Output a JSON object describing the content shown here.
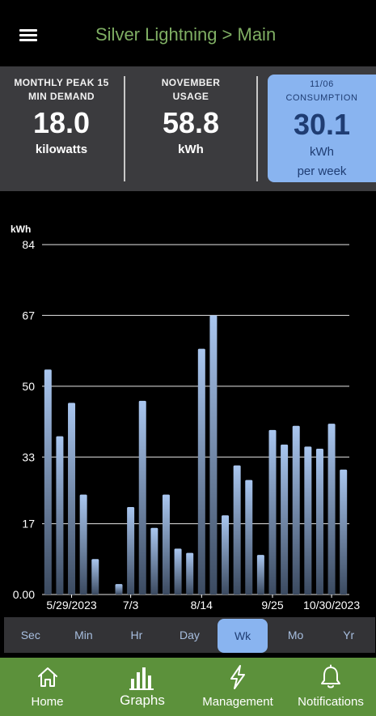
{
  "header": {
    "title": "Silver Lightning > Main",
    "menu_icon": "hamburger-menu-icon"
  },
  "summary": {
    "peak": {
      "label_line1": "MONTHLY PEAK 15",
      "label_line2": "MIN DEMAND",
      "value": "18.0",
      "unit": "kilowatts"
    },
    "usage": {
      "label_line1": "NOVEMBER",
      "label_line2": "USAGE",
      "value": "58.8",
      "unit": "kWh"
    },
    "consumption": {
      "label_line1": "11/06",
      "label_line2": "CONSUMPTION",
      "value": "30.1",
      "unit_line1": "kWh",
      "unit_line2": "per week"
    }
  },
  "intervals": {
    "items": [
      "Sec",
      "Min",
      "Hr",
      "Day",
      "Wk",
      "Mo",
      "Yr"
    ],
    "selected": "Wk"
  },
  "bottom_nav": {
    "items": [
      {
        "label": "Home",
        "icon": "home-icon"
      },
      {
        "label": "Graphs",
        "icon": "bar-chart-icon",
        "active": true
      },
      {
        "label": "Management",
        "icon": "lightning-bolt-icon"
      },
      {
        "label": "Notifications",
        "icon": "bell-icon"
      }
    ]
  },
  "colors": {
    "accent_green": "#5c913b",
    "title_green": "#7fae63",
    "highlight_blue": "#89b4f0",
    "dark_blue": "#1f3d73",
    "bar_top": "#a9c6ef",
    "bar_bottom": "#3b4a60"
  },
  "chart_data": {
    "type": "bar",
    "ylabel": "kWh",
    "ylim": [
      0,
      84
    ],
    "y_ticks": [
      "84",
      "67",
      "50",
      "33",
      "17",
      "0.00"
    ],
    "y_tick_values": [
      84,
      67,
      50,
      33,
      17,
      0
    ],
    "x_tick_labels": [
      "5/29/2023",
      "7/3",
      "8/14",
      "9/25",
      "10/30/2023"
    ],
    "x_tick_bar_index": [
      2,
      7,
      13,
      19,
      24
    ],
    "grid": true,
    "values": [
      54,
      38,
      46,
      24,
      8.5,
      0,
      2.5,
      21,
      46.5,
      16,
      24,
      11,
      10,
      59,
      67,
      19,
      31,
      27.5,
      9.5,
      39.5,
      36,
      40.5,
      35.5,
      35,
      41,
      30
    ]
  }
}
